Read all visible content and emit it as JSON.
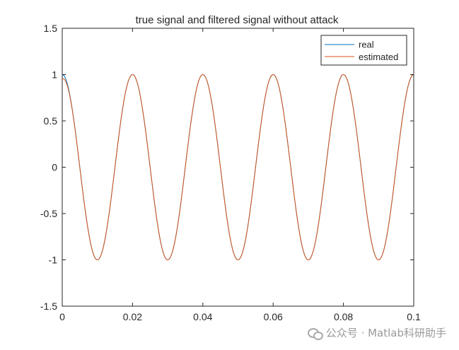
{
  "chart_data": {
    "type": "line",
    "title": "true signal and filtered signal without attack",
    "xlabel": "",
    "ylabel": "",
    "xlim": [
      0,
      0.1
    ],
    "ylim": [
      -1.5,
      1.5
    ],
    "x_ticks": [
      "0",
      "0.02",
      "0.04",
      "0.06",
      "0.08",
      "0.1"
    ],
    "y_ticks": [
      "1.5",
      "1",
      "0.5",
      "0",
      "-0.5",
      "-1",
      "-1.5"
    ],
    "grid": false,
    "legend_position": "top-right",
    "series": [
      {
        "name": "real",
        "color": "#0072BD",
        "function": "cos",
        "frequency_hz": 50,
        "x_start": 0,
        "x_end": 0.1,
        "key_points": [
          [
            0,
            1
          ],
          [
            0.01,
            -1
          ],
          [
            0.02,
            1
          ],
          [
            0.03,
            -1
          ],
          [
            0.04,
            1
          ],
          [
            0.05,
            -1
          ],
          [
            0.06,
            1
          ],
          [
            0.07,
            -1
          ],
          [
            0.08,
            1
          ],
          [
            0.09,
            -1
          ],
          [
            0.1,
            1
          ]
        ]
      },
      {
        "name": "estimated",
        "color": "#D95319",
        "function": "cos",
        "frequency_hz": 50,
        "x_start": 0,
        "x_end": 0.1,
        "key_points": [
          [
            0,
            0.95
          ],
          [
            0.005,
            -0.05
          ],
          [
            0.01,
            -1
          ],
          [
            0.02,
            1
          ],
          [
            0.03,
            -1
          ],
          [
            0.04,
            1
          ],
          [
            0.05,
            -1
          ],
          [
            0.06,
            1
          ],
          [
            0.07,
            -1
          ],
          [
            0.08,
            1
          ],
          [
            0.09,
            -1
          ],
          [
            0.1,
            1
          ]
        ]
      }
    ]
  },
  "watermark": {
    "text": "公众号 · Matlab科研助手",
    "icon": "wechat-icon"
  }
}
